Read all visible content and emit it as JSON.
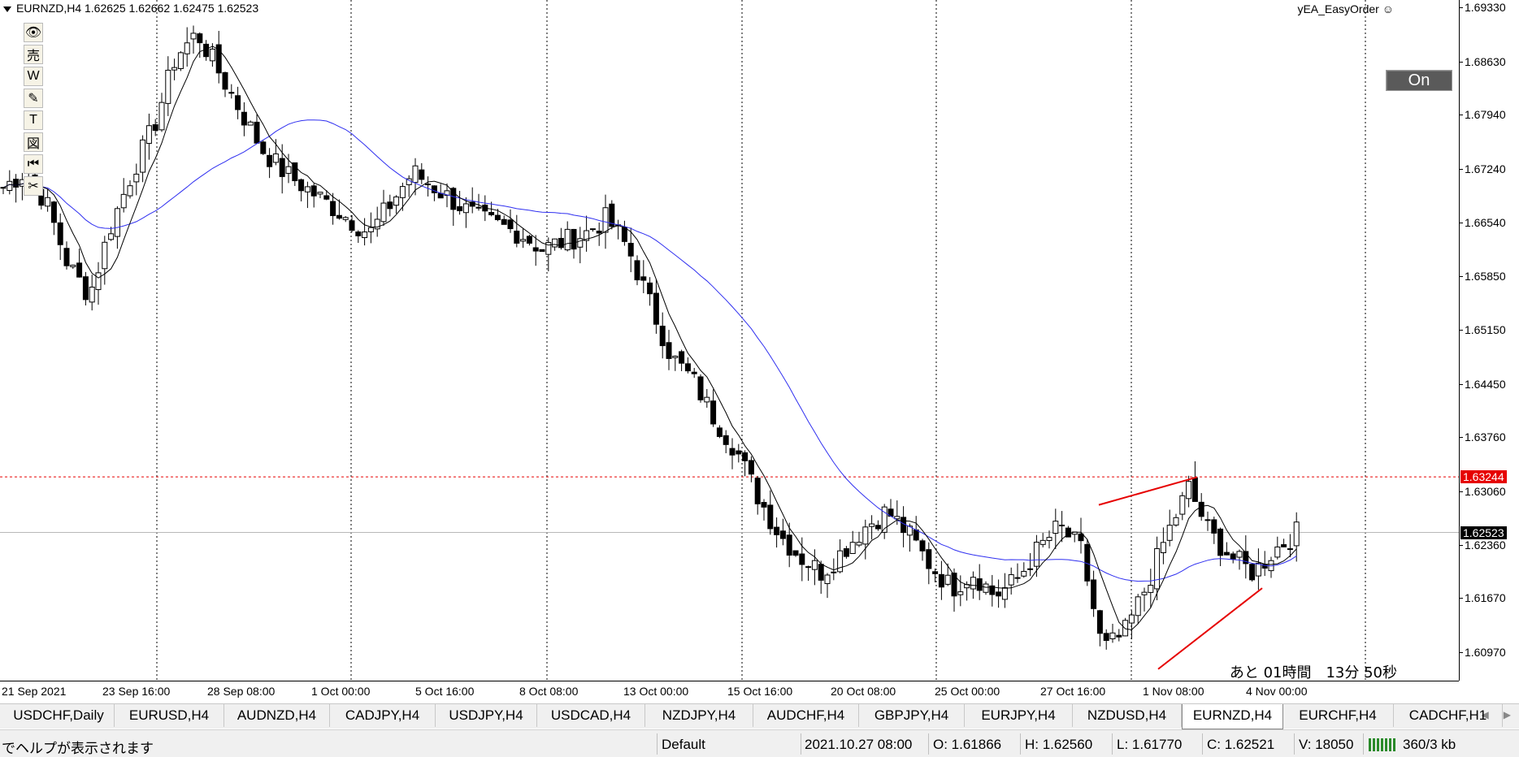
{
  "window": {
    "symbol_header": "EURNZD,H4  1.62625 1.62662 1.62475 1.62523",
    "ea_label": "yEA_EasyOrder ☺",
    "on_button": "On",
    "countdown": "あと 01時間　13分 50秒"
  },
  "toolbar": {
    "tools": [
      {
        "name": "eye-icon",
        "glyph": "👁"
      },
      {
        "name": "sell-icon",
        "glyph": "売"
      },
      {
        "name": "w-icon",
        "glyph": "W"
      },
      {
        "name": "pencil-icon",
        "glyph": "✎"
      },
      {
        "name": "text-icon",
        "glyph": "T"
      },
      {
        "name": "chart-icon",
        "glyph": "図"
      },
      {
        "name": "rewind-icon",
        "glyph": "⏮"
      },
      {
        "name": "scissors-icon",
        "glyph": "✂"
      }
    ]
  },
  "colors": {
    "ma_slow": "#2f2ff0",
    "ma_fast": "#000000",
    "level_line": "#e60000",
    "wedge": "#e60000",
    "current_badge_bg": "#000000",
    "level_badge_bg": "#e60000"
  },
  "price_axis": {
    "ticks": [
      "1.69330",
      "1.68630",
      "1.67940",
      "1.67240",
      "1.66540",
      "1.65850",
      "1.65150",
      "1.64450",
      "1.63760",
      "1.63060",
      "1.62360",
      "1.61670",
      "1.60970"
    ],
    "level_badge": "1.63244",
    "current_badge": "1.62523"
  },
  "time_axis": {
    "labels": [
      "21 Sep 2021",
      "23 Sep 16:00",
      "28 Sep 08:00",
      "1 Oct 00:00",
      "5 Oct 16:00",
      "8 Oct 08:00",
      "13 Oct 00:00",
      "15 Oct 16:00",
      "20 Oct 08:00",
      "25 Oct 00:00",
      "27 Oct 16:00",
      "1 Nov 08:00",
      "4 Nov 00:00"
    ]
  },
  "chart_data": {
    "type": "candlestick",
    "symbol": "EURNZD",
    "timeframe": "H4",
    "ylim": [
      1.606,
      1.6943
    ],
    "horizontal_levels": [
      1.63244,
      1.62523
    ],
    "close_series_sample": [
      1.67,
      1.672,
      1.668,
      1.66,
      1.656,
      1.665,
      1.672,
      1.678,
      1.687,
      1.69,
      1.685,
      1.68,
      1.675,
      1.672,
      1.67,
      1.668,
      1.666,
      1.664,
      1.668,
      1.672,
      1.67,
      1.668,
      1.666,
      1.665,
      1.664,
      1.662,
      1.663,
      1.664,
      1.666,
      1.662,
      1.655,
      1.648,
      1.645,
      1.64,
      1.636,
      1.63,
      1.625,
      1.622,
      1.62,
      1.623,
      1.626,
      1.628,
      1.625,
      1.621,
      1.618,
      1.62,
      1.617,
      1.619,
      1.623,
      1.626,
      1.623,
      1.61,
      1.612,
      1.618,
      1.625,
      1.631,
      1.625,
      1.622,
      1.62,
      1.623,
      1.6252
    ],
    "series": [
      {
        "name": "MA fast",
        "color": "#000000"
      },
      {
        "name": "MA slow",
        "color": "#2f2ff0"
      }
    ]
  },
  "tabs": {
    "items": [
      "USDCHF,Daily",
      "EURUSD,H4",
      "AUDNZD,H4",
      "CADJPY,H4",
      "USDJPY,H4",
      "USDCAD,H4",
      "NZDJPY,H4",
      "AUDCHF,H4",
      "GBPJPY,H4",
      "EURJPY,H4",
      "NZDUSD,H4",
      "EURNZD,H4",
      "EURCHF,H4",
      "CADCHF,H1"
    ],
    "active": "EURNZD,H4",
    "nav_left": "◀",
    "nav_right": "▶"
  },
  "status_bar": {
    "help": "でヘルプが表示されます",
    "profile": "Default",
    "datetime": "2021.10.27 08:00",
    "open": "O: 1.61866",
    "high": "H: 1.62560",
    "low": "L: 1.61770",
    "close": "C: 1.62521",
    "volume": "V: 18050",
    "traffic": "360/3 kb"
  }
}
